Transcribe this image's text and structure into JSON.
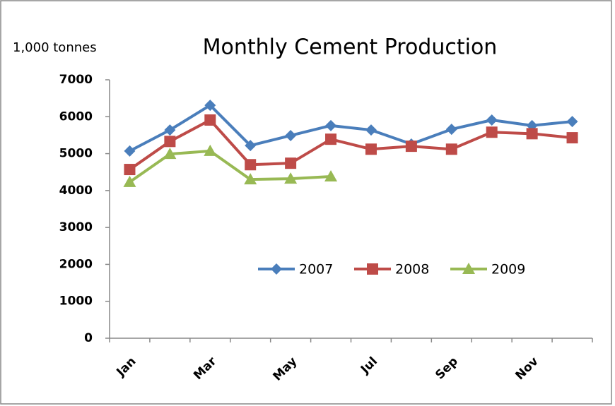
{
  "chart_data": {
    "type": "line",
    "title": "Monthly Cement Production",
    "y_axis_label": "1,000 tonnes",
    "categories": [
      "Jan",
      null,
      "Mar",
      null,
      "May",
      null,
      "Jul",
      null,
      "Sep",
      null,
      "Nov",
      null
    ],
    "series": [
      {
        "name": "2007",
        "color": "#4a7ebb",
        "marker": "diamond",
        "values": [
          5070,
          5640,
          6310,
          5220,
          5490,
          5760,
          5640,
          5260,
          5660,
          5910,
          5760,
          5870
        ]
      },
      {
        "name": "2008",
        "color": "#be4b48",
        "marker": "square",
        "values": [
          4570,
          5330,
          5910,
          4700,
          4740,
          5390,
          5120,
          5200,
          5120,
          5580,
          5540,
          5430
        ]
      },
      {
        "name": "2009",
        "color": "#98b954",
        "marker": "triangle",
        "values": [
          4230,
          4990,
          5070,
          4300,
          4320,
          4380,
          null,
          null,
          null,
          null,
          null,
          null
        ]
      }
    ],
    "ylim": [
      0,
      7000
    ],
    "yticks": [
      0,
      1000,
      2000,
      3000,
      4000,
      5000,
      6000,
      7000
    ],
    "grid": false,
    "legend": "inside-bottom-right"
  }
}
